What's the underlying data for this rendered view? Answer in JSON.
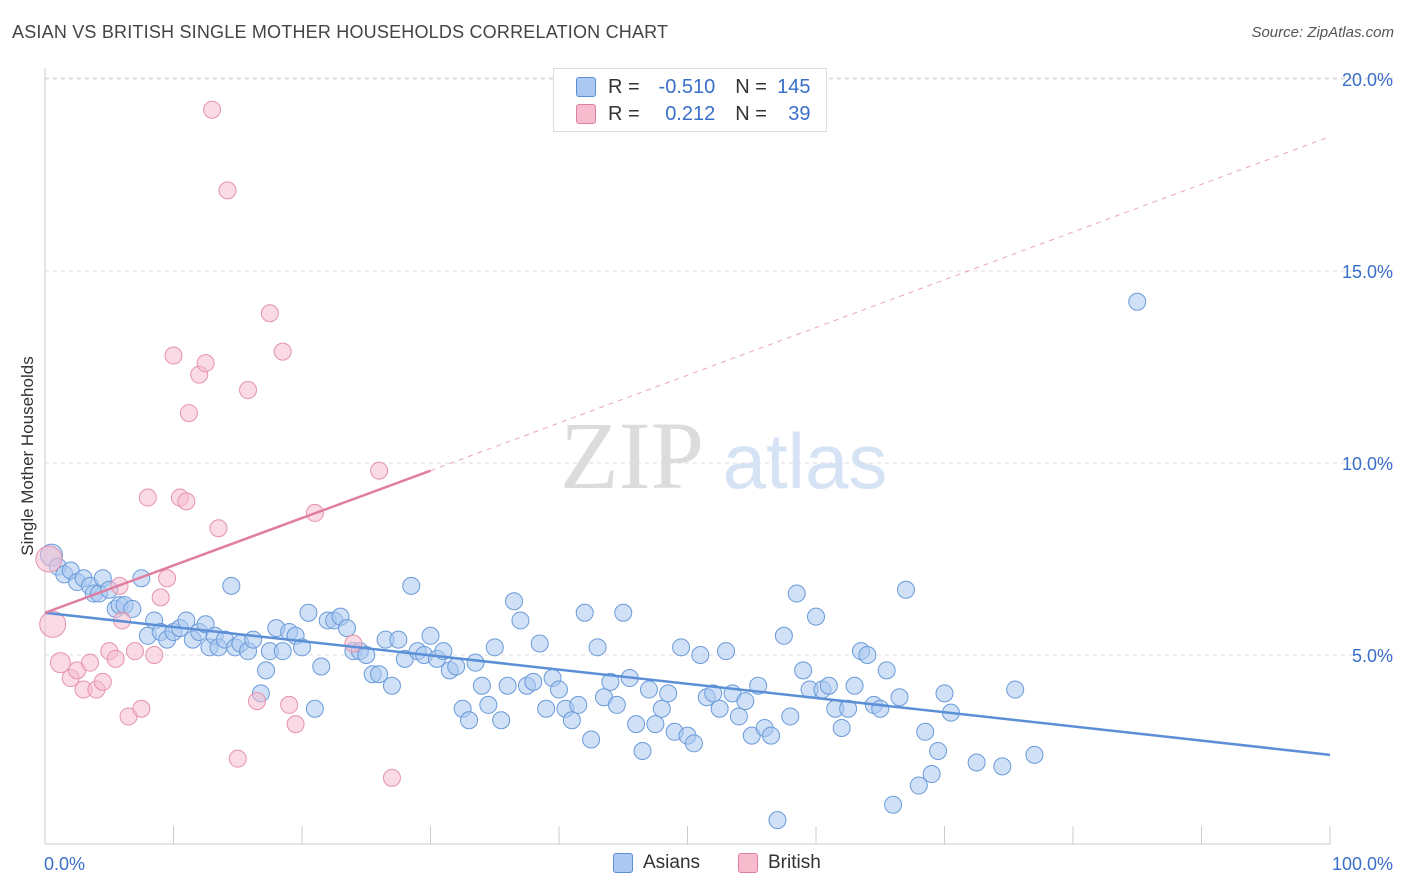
{
  "title": "ASIAN VS BRITISH SINGLE MOTHER HOUSEHOLDS CORRELATION CHART",
  "source": "Source: ZipAtlas.com",
  "watermark": {
    "zip": "ZIP",
    "atlas": "atlas"
  },
  "legend": {
    "r_label": "R =",
    "n_label": "N =",
    "rows": [
      {
        "name": "Asians",
        "r": "-0.510",
        "n": "145",
        "fill": "#aac8f0",
        "stroke": "#5b8fd6"
      },
      {
        "name": "British",
        "r": "0.212",
        "n": "39",
        "fill": "#f6bccd",
        "stroke": "#e07ea0"
      }
    ]
  },
  "chart_data": {
    "type": "scatter",
    "title": "ASIAN VS BRITISH SINGLE MOTHER HOUSEHOLDS CORRELATION CHART",
    "xlabel": "",
    "ylabel": "Single Mother Households",
    "xlim": [
      0,
      100
    ],
    "ylim": [
      0,
      20.5
    ],
    "x_tick_labels": [
      "0.0%",
      "100.0%"
    ],
    "y_ticks": [
      5,
      10,
      15,
      20
    ],
    "y_tick_labels": [
      "5.0%",
      "10.0%",
      "15.0%",
      "20.0%"
    ],
    "grid": "horizontal dashed",
    "legend_placement": "top-center",
    "series": [
      {
        "name": "Asians",
        "color": "#5b8fd6",
        "trend": {
          "x": [
            0,
            100
          ],
          "y": [
            6.1,
            2.4
          ],
          "style": "solid"
        },
        "points": [
          [
            0.5,
            7.6
          ],
          [
            1.0,
            7.3
          ],
          [
            1.5,
            7.1
          ],
          [
            2.0,
            7.2
          ],
          [
            2.5,
            6.9
          ],
          [
            3.0,
            7.0
          ],
          [
            3.5,
            6.8
          ],
          [
            3.8,
            6.6
          ],
          [
            4.2,
            6.6
          ],
          [
            4.5,
            7.0
          ],
          [
            5.0,
            6.7
          ],
          [
            5.5,
            6.2
          ],
          [
            5.8,
            6.3
          ],
          [
            6.2,
            6.3
          ],
          [
            6.8,
            6.2
          ],
          [
            7.5,
            7.0
          ],
          [
            8.0,
            5.5
          ],
          [
            8.5,
            5.9
          ],
          [
            9.0,
            5.6
          ],
          [
            9.5,
            5.4
          ],
          [
            10.0,
            5.6
          ],
          [
            10.5,
            5.7
          ],
          [
            11.0,
            5.9
          ],
          [
            11.5,
            5.4
          ],
          [
            12.0,
            5.6
          ],
          [
            12.5,
            5.8
          ],
          [
            12.8,
            5.2
          ],
          [
            13.2,
            5.5
          ],
          [
            13.5,
            5.2
          ],
          [
            14.0,
            5.4
          ],
          [
            14.5,
            6.8
          ],
          [
            14.8,
            5.2
          ],
          [
            15.2,
            5.3
          ],
          [
            15.8,
            5.1
          ],
          [
            16.2,
            5.4
          ],
          [
            16.8,
            4.0
          ],
          [
            17.2,
            4.6
          ],
          [
            17.5,
            5.1
          ],
          [
            18.0,
            5.7
          ],
          [
            18.5,
            5.1
          ],
          [
            19.0,
            5.6
          ],
          [
            19.5,
            5.5
          ],
          [
            20.0,
            5.2
          ],
          [
            20.5,
            6.1
          ],
          [
            21.0,
            3.6
          ],
          [
            21.5,
            4.7
          ],
          [
            22.0,
            5.9
          ],
          [
            22.5,
            5.9
          ],
          [
            23.0,
            6.0
          ],
          [
            23.5,
            5.7
          ],
          [
            24.0,
            5.1
          ],
          [
            24.5,
            5.1
          ],
          [
            25.0,
            5.0
          ],
          [
            25.5,
            4.5
          ],
          [
            26.0,
            4.5
          ],
          [
            26.5,
            5.4
          ],
          [
            27.0,
            4.2
          ],
          [
            27.5,
            5.4
          ],
          [
            28.0,
            4.9
          ],
          [
            28.5,
            6.8
          ],
          [
            29.0,
            5.1
          ],
          [
            29.5,
            5.0
          ],
          [
            30.0,
            5.5
          ],
          [
            30.5,
            4.9
          ],
          [
            31.0,
            5.1
          ],
          [
            31.5,
            4.6
          ],
          [
            32.0,
            4.7
          ],
          [
            32.5,
            3.6
          ],
          [
            33.0,
            3.3
          ],
          [
            33.5,
            4.8
          ],
          [
            34.0,
            4.2
          ],
          [
            34.5,
            3.7
          ],
          [
            35.0,
            5.2
          ],
          [
            35.5,
            3.3
          ],
          [
            36.0,
            4.2
          ],
          [
            36.5,
            6.4
          ],
          [
            37.0,
            5.9
          ],
          [
            37.5,
            4.2
          ],
          [
            38.0,
            4.3
          ],
          [
            38.5,
            5.3
          ],
          [
            39.0,
            3.6
          ],
          [
            39.5,
            4.4
          ],
          [
            40.0,
            4.1
          ],
          [
            40.5,
            3.6
          ],
          [
            41.0,
            3.3
          ],
          [
            41.5,
            3.7
          ],
          [
            42.0,
            6.1
          ],
          [
            42.5,
            2.8
          ],
          [
            43.0,
            5.2
          ],
          [
            43.5,
            3.9
          ],
          [
            44.0,
            4.3
          ],
          [
            44.5,
            3.7
          ],
          [
            45.0,
            6.1
          ],
          [
            45.5,
            4.4
          ],
          [
            46.0,
            3.2
          ],
          [
            46.5,
            2.5
          ],
          [
            47.0,
            4.1
          ],
          [
            47.5,
            3.2
          ],
          [
            48.0,
            3.6
          ],
          [
            48.5,
            4.0
          ],
          [
            49.0,
            3.0
          ],
          [
            49.5,
            5.2
          ],
          [
            50.0,
            2.9
          ],
          [
            50.5,
            2.7
          ],
          [
            51.0,
            5.0
          ],
          [
            51.5,
            3.9
          ],
          [
            52.0,
            4.0
          ],
          [
            52.5,
            3.6
          ],
          [
            53.0,
            5.1
          ],
          [
            53.5,
            4.0
          ],
          [
            54.0,
            3.4
          ],
          [
            54.5,
            3.8
          ],
          [
            55.0,
            2.9
          ],
          [
            55.5,
            4.2
          ],
          [
            56.0,
            3.1
          ],
          [
            56.5,
            2.9
          ],
          [
            57.0,
            0.7
          ],
          [
            57.5,
            5.5
          ],
          [
            58.0,
            3.4
          ],
          [
            58.5,
            6.6
          ],
          [
            59.0,
            4.6
          ],
          [
            59.5,
            4.1
          ],
          [
            60.0,
            6.0
          ],
          [
            60.5,
            4.1
          ],
          [
            61.0,
            4.2
          ],
          [
            61.5,
            3.6
          ],
          [
            62.0,
            3.1
          ],
          [
            62.5,
            3.6
          ],
          [
            63.0,
            4.2
          ],
          [
            63.5,
            5.1
          ],
          [
            64.0,
            5.0
          ],
          [
            64.5,
            3.7
          ],
          [
            65.0,
            3.6
          ],
          [
            65.5,
            4.6
          ],
          [
            66.0,
            1.1
          ],
          [
            66.5,
            3.9
          ],
          [
            67.0,
            6.7
          ],
          [
            68.0,
            1.6
          ],
          [
            68.5,
            3.0
          ],
          [
            69.0,
            1.9
          ],
          [
            69.5,
            2.5
          ],
          [
            70.0,
            4.0
          ],
          [
            70.5,
            3.5
          ],
          [
            72.5,
            2.2
          ],
          [
            74.5,
            2.1
          ],
          [
            75.5,
            4.1
          ],
          [
            77.0,
            2.4
          ],
          [
            85.0,
            14.2
          ]
        ]
      },
      {
        "name": "British",
        "color": "#e07ea0",
        "trend": {
          "x": [
            0,
            30
          ],
          "y": [
            6.1,
            9.8
          ],
          "style": "solid",
          "extension": {
            "x": [
              30,
              100
            ],
            "y": [
              9.8,
              18.5
            ],
            "style": "dashed"
          }
        },
        "points": [
          [
            0.3,
            7.5
          ],
          [
            0.6,
            5.8
          ],
          [
            1.2,
            4.8
          ],
          [
            2.0,
            4.4
          ],
          [
            2.5,
            4.6
          ],
          [
            3.0,
            4.1
          ],
          [
            3.5,
            4.8
          ],
          [
            4.0,
            4.1
          ],
          [
            4.5,
            4.3
          ],
          [
            5.0,
            5.1
          ],
          [
            5.5,
            4.9
          ],
          [
            5.8,
            6.8
          ],
          [
            6.0,
            5.9
          ],
          [
            6.5,
            3.4
          ],
          [
            7.0,
            5.1
          ],
          [
            7.5,
            3.6
          ],
          [
            8.0,
            9.1
          ],
          [
            8.5,
            5.0
          ],
          [
            9.0,
            6.5
          ],
          [
            9.5,
            7.0
          ],
          [
            10.0,
            12.8
          ],
          [
            10.5,
            9.1
          ],
          [
            11.0,
            9.0
          ],
          [
            11.2,
            11.3
          ],
          [
            12.0,
            12.3
          ],
          [
            12.5,
            12.6
          ],
          [
            13.0,
            19.2
          ],
          [
            13.5,
            8.3
          ],
          [
            14.2,
            17.1
          ],
          [
            15.0,
            2.3
          ],
          [
            15.8,
            11.9
          ],
          [
            16.5,
            3.8
          ],
          [
            17.5,
            13.9
          ],
          [
            18.5,
            12.9
          ],
          [
            19.0,
            3.7
          ],
          [
            19.5,
            3.2
          ],
          [
            21.0,
            8.7
          ],
          [
            24.0,
            5.3
          ],
          [
            26.0,
            9.8
          ],
          [
            27.0,
            1.8
          ]
        ]
      }
    ]
  }
}
